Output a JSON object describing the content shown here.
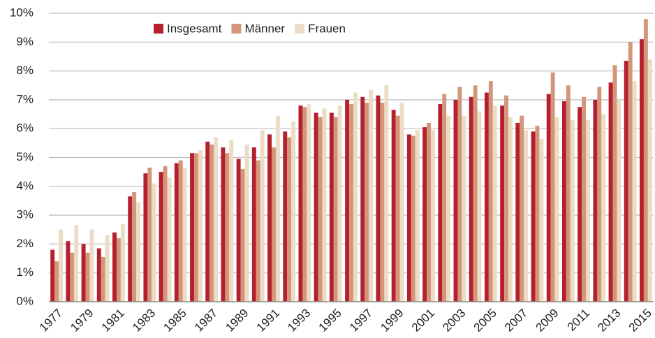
{
  "chart_data": {
    "type": "bar",
    "categories": [
      "1977",
      null,
      "1979",
      null,
      "1981",
      null,
      "1983",
      null,
      "1985",
      null,
      "1987",
      null,
      "1989",
      null,
      "1991",
      null,
      "1993",
      null,
      "1995",
      null,
      "1997",
      null,
      "1999",
      null,
      "2001",
      null,
      "2003",
      null,
      "2005",
      null,
      "2007",
      null,
      "2009",
      null,
      "2011",
      null,
      "2013",
      null,
      "2015"
    ],
    "series": [
      {
        "name": "Insgesamt",
        "color": "#b5202e",
        "values": [
          1.8,
          2.1,
          2.0,
          1.85,
          2.4,
          3.65,
          4.45,
          4.5,
          4.8,
          5.15,
          5.55,
          5.35,
          4.95,
          5.35,
          5.8,
          5.9,
          6.8,
          6.55,
          6.55,
          7.0,
          7.1,
          7.15,
          6.65,
          5.8,
          6.05,
          6.85,
          7.0,
          7.1,
          7.25,
          6.8,
          6.2,
          5.9,
          7.2,
          6.95,
          6.75,
          7.0,
          7.6,
          8.35,
          9.1
        ]
      },
      {
        "name": "Männer",
        "color": "#d4967a",
        "values": [
          1.4,
          1.7,
          1.7,
          1.55,
          2.2,
          3.8,
          4.65,
          4.7,
          4.9,
          5.15,
          5.45,
          5.15,
          4.6,
          4.9,
          5.35,
          5.7,
          6.75,
          6.4,
          6.4,
          6.85,
          6.9,
          6.9,
          6.45,
          5.75,
          6.2,
          7.2,
          7.45,
          7.5,
          7.65,
          7.15,
          6.45,
          6.1,
          7.95,
          7.5,
          7.1,
          7.45,
          8.2,
          9.0,
          9.8
        ]
      },
      {
        "name": "Frauen",
        "color": "#ecdcc6",
        "values": [
          2.5,
          2.65,
          2.5,
          2.3,
          2.7,
          3.45,
          4.1,
          4.3,
          4.65,
          5.25,
          5.7,
          5.6,
          5.45,
          5.95,
          6.45,
          6.25,
          6.85,
          6.7,
          6.8,
          7.25,
          7.35,
          7.5,
          6.9,
          5.95,
          5.95,
          6.45,
          6.45,
          6.6,
          6.8,
          6.4,
          5.95,
          5.65,
          6.4,
          6.3,
          6.3,
          6.5,
          7.0,
          7.65,
          8.4
        ]
      }
    ],
    "ylim": [
      0,
      10
    ],
    "yticks": [
      {
        "value": 0,
        "label": "0%"
      },
      {
        "value": 1,
        "label": "1%"
      },
      {
        "value": 2,
        "label": "2%"
      },
      {
        "value": 3,
        "label": "3%"
      },
      {
        "value": 4,
        "label": "4%"
      },
      {
        "value": 5,
        "label": "5%"
      },
      {
        "value": 6,
        "label": "6%"
      },
      {
        "value": 7,
        "label": "7%"
      },
      {
        "value": 8,
        "label": "8%"
      },
      {
        "value": 9,
        "label": "9%"
      },
      {
        "value": 10,
        "label": "10%"
      }
    ],
    "grid": true,
    "legend": "top"
  }
}
